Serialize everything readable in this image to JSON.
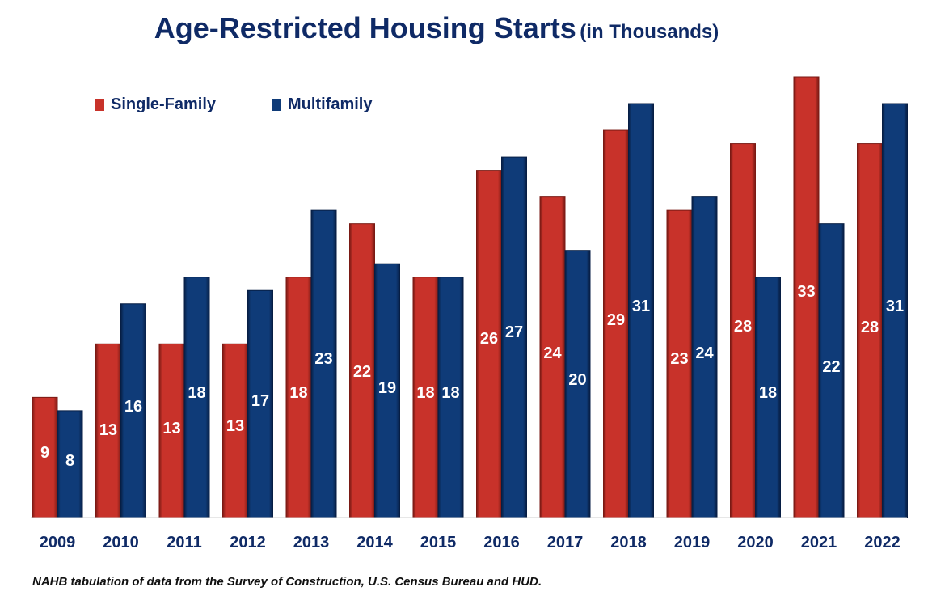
{
  "title": "Age-Restricted Housing Starts",
  "subtitle": "(in Thousands)",
  "source_note": "NAHB tabulation of data from the Survey of Construction, U.S. Census Bureau and HUD.",
  "colors": {
    "single_family": "#c8322a",
    "multifamily": "#0f3b78",
    "text_dark": "#0f2a66"
  },
  "chart_data": {
    "type": "bar",
    "categories": [
      "2009",
      "2010",
      "2011",
      "2012",
      "2013",
      "2014",
      "2015",
      "2016",
      "2017",
      "2018",
      "2019",
      "2020",
      "2021",
      "2022"
    ],
    "series": [
      {
        "name": "Single-Family",
        "values": [
          9,
          13,
          13,
          13,
          18,
          22,
          18,
          26,
          24,
          29,
          23,
          28,
          33,
          28
        ]
      },
      {
        "name": "Multifamily",
        "values": [
          8,
          16,
          18,
          17,
          23,
          19,
          18,
          27,
          20,
          31,
          24,
          18,
          22,
          31
        ]
      }
    ],
    "legend_position": "top-left",
    "grid": false
  }
}
